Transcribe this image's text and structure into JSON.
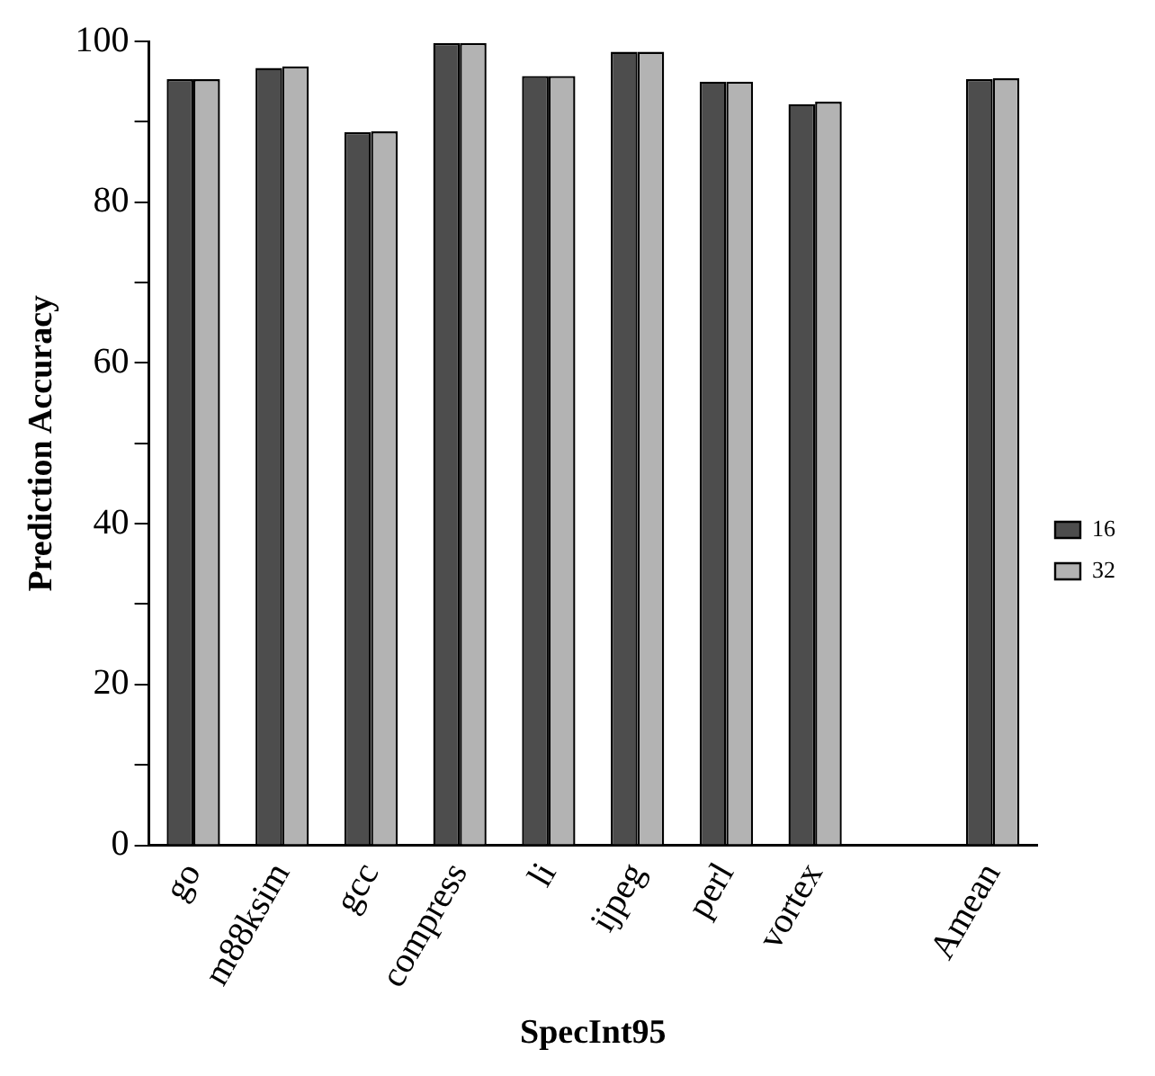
{
  "chart_data": {
    "type": "bar",
    "xlabel": "SpecInt95",
    "ylabel": "Prediction Accuracy",
    "categories": [
      "go",
      "m88ksim",
      "gcc",
      "compress",
      "li",
      "ijpeg",
      "perl",
      "vortex",
      null,
      "Amean"
    ],
    "series": [
      {
        "name": "16",
        "color": "#4d4d4d",
        "values": [
          95.3,
          96.7,
          88.7,
          99.8,
          95.7,
          98.7,
          95.0,
          92.2,
          null,
          95.3
        ]
      },
      {
        "name": "32",
        "color": "#b3b3b3",
        "values": [
          95.3,
          96.9,
          88.8,
          99.8,
          95.7,
          98.7,
          95.0,
          92.5,
          null,
          95.4
        ]
      }
    ],
    "ylim": [
      0,
      100
    ],
    "yticks": [
      0,
      {
        "value": 10,
        "label": null
      },
      20,
      {
        "value": 30,
        "label": null
      },
      40,
      {
        "value": 50,
        "label": null
      },
      60,
      {
        "value": 70,
        "label": null
      },
      80,
      {
        "value": 90,
        "label": null
      },
      100
    ],
    "grid": false,
    "legend": "right"
  }
}
